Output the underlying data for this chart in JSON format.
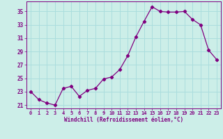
{
  "x": [
    0,
    1,
    2,
    3,
    4,
    5,
    6,
    7,
    8,
    9,
    10,
    11,
    12,
    13,
    14,
    15,
    16,
    17,
    18,
    19,
    20,
    21,
    22,
    23
  ],
  "y": [
    23.0,
    21.8,
    21.3,
    21.0,
    23.5,
    23.8,
    22.3,
    23.2,
    23.5,
    24.9,
    25.2,
    26.3,
    28.4,
    31.2,
    33.5,
    35.7,
    35.0,
    34.9,
    34.9,
    35.0,
    33.8,
    33.0,
    29.2,
    27.8
  ],
  "line_color": "#800080",
  "marker": "D",
  "marker_size": 2.2,
  "bg_color": "#cceee8",
  "grid_color": "#aadddd",
  "tick_color": "#800080",
  "label_color": "#800080",
  "xlabel": "Windchill (Refroidissement éolien,°C)",
  "xlim": [
    -0.5,
    23.5
  ],
  "ylim": [
    20.5,
    36.5
  ],
  "yticks": [
    21,
    23,
    25,
    27,
    29,
    31,
    33,
    35
  ],
  "xticks": [
    0,
    1,
    2,
    3,
    4,
    5,
    6,
    7,
    8,
    9,
    10,
    11,
    12,
    13,
    14,
    15,
    16,
    17,
    18,
    19,
    20,
    21,
    22,
    23
  ]
}
